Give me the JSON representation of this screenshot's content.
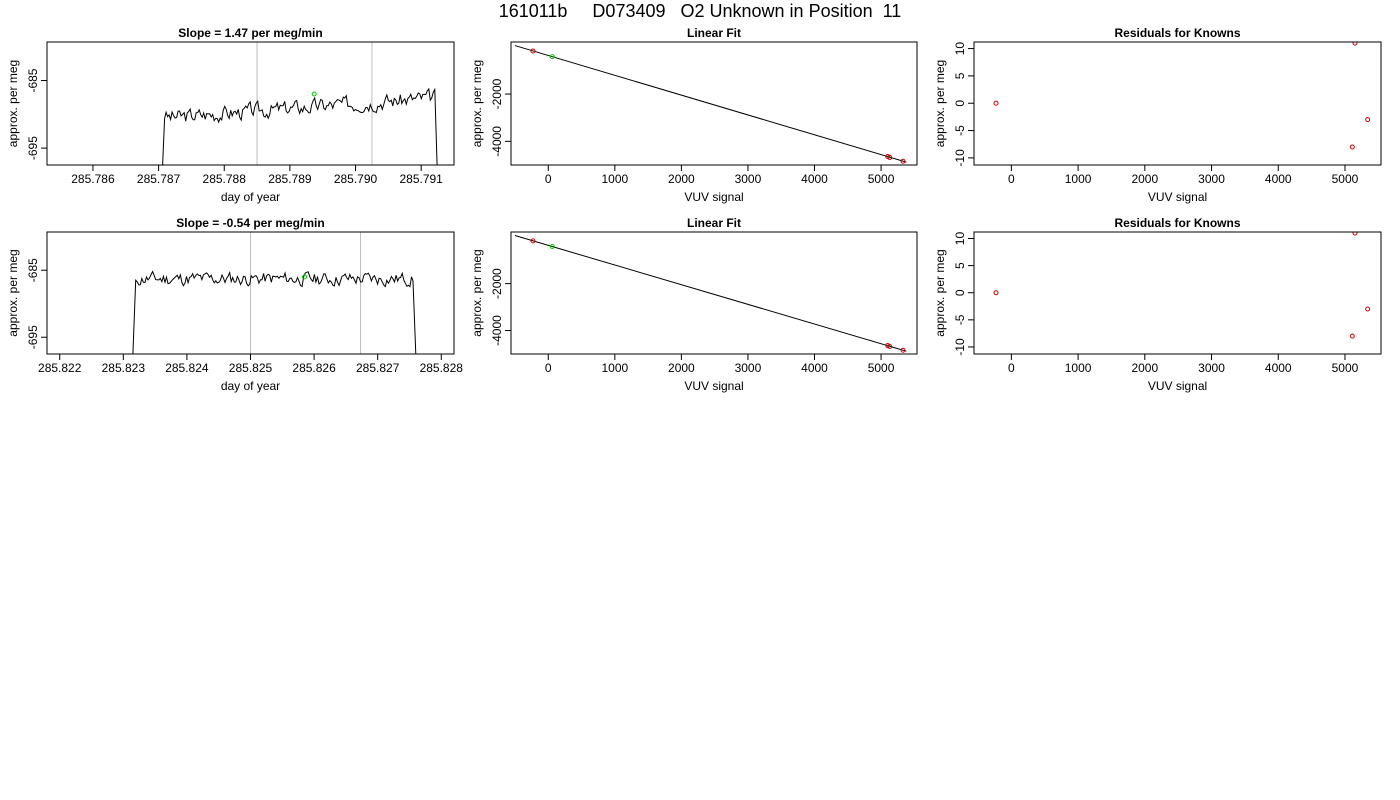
{
  "page": {
    "title": "161011b     D073409   O2 Unknown in Position  11"
  },
  "colors": {
    "trace": "#000000",
    "marker_line": "#bebebe",
    "unknown_point": "#00cd00",
    "known_point": "#cd0000",
    "axes": "#000000"
  },
  "chart_data": [
    {
      "type": "line",
      "title": "Slope =  1.47  per meg/min",
      "xlabel": "day of year",
      "ylabel": "approx. per meg",
      "xlim": [
        285.7853,
        285.7915
      ],
      "ylim": [
        -697.5,
        -679.3
      ],
      "x_ticks": [
        285.786,
        285.787,
        285.788,
        285.789,
        285.79,
        285.791
      ],
      "x_tick_labels": [
        "285.786",
        "285.787",
        "285.788",
        "285.789",
        "285.790",
        "285.791"
      ],
      "y_ticks": [
        -685,
        -695
      ],
      "y_tick_labels": [
        "-685",
        "-695"
      ],
      "trace": {
        "x_start": 285.78705,
        "x_end": 285.79125,
        "y_start": -700,
        "y_end": -700,
        "level": -687.5,
        "ramp": 1.5,
        "amplitude": 1.8,
        "seed": 3
      },
      "vlines": [
        285.7885,
        285.79025
      ],
      "unknown_point": {
        "x": 285.78937,
        "y": -687
      }
    },
    {
      "type": "line",
      "title": "Linear Fit",
      "xlabel": "VUV signal",
      "ylabel": "approx. per meg",
      "xlim": [
        -560,
        5540
      ],
      "ylim": [
        -5000,
        200
      ],
      "x_ticks": [
        0,
        1000,
        2000,
        3000,
        4000,
        5000
      ],
      "x_tick_labels": [
        "0",
        "1000",
        "2000",
        "3000",
        "4000",
        "5000"
      ],
      "y_ticks": [
        -2000,
        -4000
      ],
      "y_tick_labels": [
        "-2000",
        "-4000"
      ],
      "fit_line": {
        "x": [
          -500,
          5380
        ],
        "y": [
          50,
          -4880
        ]
      },
      "known_points": {
        "x": [
          -230,
          5100,
          5130,
          5330
        ],
        "y": [
          -180,
          -4640,
          -4680,
          -4840
        ]
      },
      "unknown_point": {
        "x": 60,
        "y": -420
      }
    },
    {
      "type": "scatter",
      "title": "Residuals for Knowns",
      "xlabel": "VUV signal",
      "ylabel": "approx. per meg",
      "xlim": [
        -560,
        5540
      ],
      "ylim": [
        -11.3,
        11.2
      ],
      "x_ticks": [
        0,
        1000,
        2000,
        3000,
        4000,
        5000
      ],
      "x_tick_labels": [
        "0",
        "1000",
        "2000",
        "3000",
        "4000",
        "5000"
      ],
      "y_ticks": [
        10,
        5,
        0,
        -5,
        -10
      ],
      "y_tick_labels": [
        "10",
        "5",
        "0",
        "-5",
        "-10"
      ],
      "known_points": {
        "x": [
          -230,
          5150,
          5110,
          5340
        ],
        "y": [
          0,
          11,
          -8,
          -3
        ]
      }
    },
    {
      "type": "line",
      "title": "Slope =  -0.54  per meg/min",
      "xlabel": "day of year",
      "ylabel": "approx. per meg",
      "xlim": [
        285.8218,
        285.8282
      ],
      "ylim": [
        -697.5,
        -679.3
      ],
      "x_ticks": [
        285.822,
        285.823,
        285.824,
        285.825,
        285.826,
        285.827,
        285.828
      ],
      "x_tick_labels": [
        "285.822",
        "285.823",
        "285.824",
        "285.825",
        "285.826",
        "285.827",
        "285.828"
      ],
      "y_ticks": [
        -685,
        -695
      ],
      "y_tick_labels": [
        "-685",
        "-695"
      ],
      "trace": {
        "x_start": 285.82315,
        "x_end": 285.8276,
        "y_start": -697.5,
        "y_end": -697.5,
        "level": -686.3,
        "ramp": 0.0,
        "amplitude": 1.6,
        "seed": 11
      },
      "vlines": [
        285.825,
        285.82673
      ],
      "unknown_point": {
        "x": 285.82585,
        "y": -686
      }
    },
    {
      "type": "line",
      "title": "Linear Fit",
      "xlabel": "VUV signal",
      "ylabel": "approx. per meg",
      "xlim": [
        -560,
        5540
      ],
      "ylim": [
        -5000,
        200
      ],
      "x_ticks": [
        0,
        1000,
        2000,
        3000,
        4000,
        5000
      ],
      "x_tick_labels": [
        "0",
        "1000",
        "2000",
        "3000",
        "4000",
        "5000"
      ],
      "y_ticks": [
        -2000,
        -4000
      ],
      "y_tick_labels": [
        "-2000",
        "-4000"
      ],
      "fit_line": {
        "x": [
          -500,
          5380
        ],
        "y": [
          50,
          -4880
        ]
      },
      "known_points": {
        "x": [
          -230,
          5100,
          5130,
          5330
        ],
        "y": [
          -180,
          -4640,
          -4680,
          -4840
        ]
      },
      "unknown_point": {
        "x": 60,
        "y": -420
      }
    },
    {
      "type": "scatter",
      "title": "Residuals for Knowns",
      "xlabel": "VUV signal",
      "ylabel": "approx. per meg",
      "xlim": [
        -560,
        5540
      ],
      "ylim": [
        -11.3,
        11.2
      ],
      "x_ticks": [
        0,
        1000,
        2000,
        3000,
        4000,
        5000
      ],
      "x_tick_labels": [
        "0",
        "1000",
        "2000",
        "3000",
        "4000",
        "5000"
      ],
      "y_ticks": [
        10,
        5,
        0,
        -5,
        -10
      ],
      "y_tick_labels": [
        "10",
        "5",
        "0",
        "-5",
        "-10"
      ],
      "known_points": {
        "x": [
          -230,
          5150,
          5110,
          5340
        ],
        "y": [
          0,
          11,
          -8,
          -3
        ]
      }
    }
  ]
}
